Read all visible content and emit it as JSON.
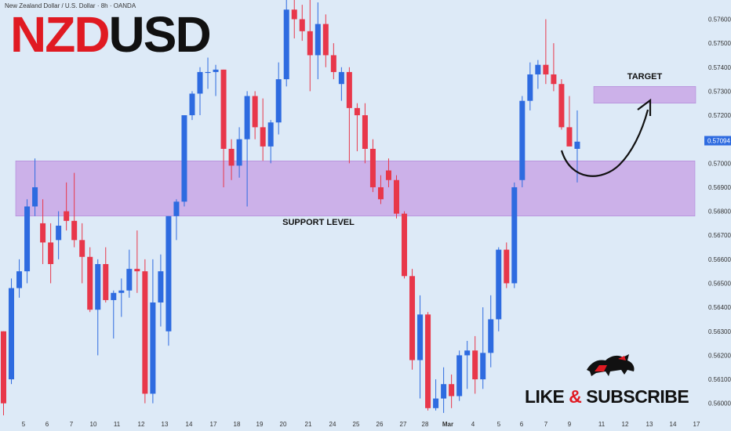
{
  "header": {
    "symbol_line": "New Zealand Dollar / U.S. Dollar · 8h · OANDA"
  },
  "logo": {
    "part1": "NZD",
    "part2": "USD"
  },
  "annotations": {
    "support": "SUPPORT LEVEL",
    "target": "TARGET"
  },
  "cta": {
    "like": "LIKE",
    "amp": "&",
    "subscribe": "SUBSCRIBE"
  },
  "colors": {
    "background": "#ddeaf7",
    "up": "#2e6be0",
    "down": "#e8374a",
    "zone": "#c9a7e6",
    "zone_border": "#a97bd3",
    "price_tag": "#2e6be0",
    "logo_red": "#e01a22"
  },
  "chart_data": {
    "type": "candlestick",
    "current_price": "0.57094",
    "ylim": [
      0.5595,
      0.5768
    ],
    "y_ticks": [
      "0.57600",
      "0.57500",
      "0.57400",
      "0.57300",
      "0.57200",
      "0.57100",
      "0.57000",
      "0.56900",
      "0.56800",
      "0.56700",
      "0.56600",
      "0.56500",
      "0.56400",
      "0.56300",
      "0.56200",
      "0.56100",
      "0.56000"
    ],
    "x_ticks": [
      "5",
      "6",
      "7",
      "10",
      "11",
      "12",
      "13",
      "14",
      "17",
      "18",
      "19",
      "20",
      "21",
      "24",
      "25",
      "26",
      "27",
      "28",
      "Mar",
      "4",
      "5",
      "6",
      "7",
      "9",
      "11",
      "12",
      "13",
      "14",
      "17"
    ],
    "zones": [
      {
        "label": "SUPPORT LEVEL",
        "y_low": 0.5678,
        "y_high": 0.5701
      },
      {
        "label": "TARGET",
        "y_low": 0.5725,
        "y_high": 0.5732
      }
    ],
    "candles": [
      [
        0.563,
        0.563,
        0.5595,
        0.56
      ],
      [
        0.561,
        0.5652,
        0.5608,
        0.5648
      ],
      [
        0.5648,
        0.566,
        0.5644,
        0.5655
      ],
      [
        0.5655,
        0.5685,
        0.565,
        0.5682
      ],
      [
        0.5682,
        0.5702,
        0.5678,
        0.569
      ],
      [
        0.5675,
        0.5685,
        0.5658,
        0.5667
      ],
      [
        0.5667,
        0.5675,
        0.565,
        0.5658
      ],
      [
        0.5668,
        0.568,
        0.566,
        0.5674
      ],
      [
        0.568,
        0.5692,
        0.5672,
        0.5676
      ],
      [
        0.5676,
        0.5696,
        0.5665,
        0.5668
      ],
      [
        0.5668,
        0.5675,
        0.565,
        0.5661
      ],
      [
        0.5661,
        0.5665,
        0.5638,
        0.5639
      ],
      [
        0.5639,
        0.566,
        0.562,
        0.5658
      ],
      [
        0.5658,
        0.5665,
        0.5642,
        0.5643
      ],
      [
        0.5643,
        0.5647,
        0.5627,
        0.5646
      ],
      [
        0.5646,
        0.5652,
        0.5636,
        0.5647
      ],
      [
        0.5647,
        0.5664,
        0.5644,
        0.5656
      ],
      [
        0.5656,
        0.5672,
        0.5646,
        0.5655
      ],
      [
        0.5655,
        0.566,
        0.56,
        0.5604
      ],
      [
        0.5604,
        0.566,
        0.56,
        0.5642
      ],
      [
        0.5642,
        0.5662,
        0.5632,
        0.5655
      ],
      [
        0.563,
        0.5678,
        0.5624,
        0.5678
      ],
      [
        0.5678,
        0.5685,
        0.5668,
        0.5684
      ],
      [
        0.5684,
        0.572,
        0.5682,
        0.572
      ],
      [
        0.572,
        0.573,
        0.5718,
        0.5729
      ],
      [
        0.5729,
        0.574,
        0.572,
        0.5738
      ],
      [
        0.5738,
        0.5744,
        0.5731,
        0.5738
      ],
      [
        0.5738,
        0.5741,
        0.5728,
        0.5739
      ],
      [
        0.5739,
        0.5739,
        0.569,
        0.5706
      ],
      [
        0.5706,
        0.571,
        0.5693,
        0.5699
      ],
      [
        0.5699,
        0.5715,
        0.5694,
        0.571
      ],
      [
        0.571,
        0.573,
        0.5682,
        0.5728
      ],
      [
        0.5728,
        0.573,
        0.571,
        0.5715
      ],
      [
        0.5715,
        0.5727,
        0.5701,
        0.5707
      ],
      [
        0.5707,
        0.5718,
        0.57,
        0.5717
      ],
      [
        0.5717,
        0.5742,
        0.5712,
        0.5735
      ],
      [
        0.5735,
        0.5768,
        0.5732,
        0.5764
      ],
      [
        0.5764,
        0.577,
        0.5752,
        0.576
      ],
      [
        0.576,
        0.5766,
        0.5751,
        0.5755
      ],
      [
        0.5755,
        0.5768,
        0.573,
        0.5745
      ],
      [
        0.5745,
        0.5767,
        0.5735,
        0.5758
      ],
      [
        0.5758,
        0.5762,
        0.574,
        0.5745
      ],
      [
        0.5745,
        0.575,
        0.5735,
        0.5738
      ],
      [
        0.5733,
        0.574,
        0.5726,
        0.5738
      ],
      [
        0.5738,
        0.574,
        0.57,
        0.5723
      ],
      [
        0.5723,
        0.5725,
        0.5705,
        0.572
      ],
      [
        0.572,
        0.5725,
        0.57,
        0.5706
      ],
      [
        0.5706,
        0.571,
        0.5688,
        0.569
      ],
      [
        0.569,
        0.5695,
        0.5683,
        0.5685
      ],
      [
        0.5697,
        0.5702,
        0.569,
        0.5693
      ],
      [
        0.5693,
        0.5695,
        0.5677,
        0.5679
      ],
      [
        0.5679,
        0.568,
        0.5652,
        0.5653
      ],
      [
        0.5653,
        0.5656,
        0.5614,
        0.5618
      ],
      [
        0.5618,
        0.5645,
        0.5602,
        0.5637
      ],
      [
        0.5637,
        0.5638,
        0.5597,
        0.5598
      ],
      [
        0.5598,
        0.561,
        0.5597,
        0.5602
      ],
      [
        0.5602,
        0.5615,
        0.5596,
        0.5608
      ],
      [
        0.5608,
        0.5612,
        0.5598,
        0.5603
      ],
      [
        0.5603,
        0.5622,
        0.5601,
        0.562
      ],
      [
        0.562,
        0.5626,
        0.5606,
        0.5622
      ],
      [
        0.5622,
        0.5628,
        0.5604,
        0.561
      ],
      [
        0.561,
        0.564,
        0.5606,
        0.5621
      ],
      [
        0.5621,
        0.5645,
        0.5615,
        0.5635
      ],
      [
        0.5635,
        0.5665,
        0.563,
        0.5664
      ],
      [
        0.5664,
        0.5667,
        0.5648,
        0.565
      ],
      [
        0.565,
        0.5692,
        0.5648,
        0.569
      ],
      [
        0.5693,
        0.5728,
        0.569,
        0.5726
      ],
      [
        0.5726,
        0.5742,
        0.5722,
        0.5737
      ],
      [
        0.5737,
        0.5743,
        0.5731,
        0.5741
      ],
      [
        0.5741,
        0.576,
        0.5733,
        0.5737
      ],
      [
        0.5737,
        0.575,
        0.573,
        0.5733
      ],
      [
        0.5733,
        0.5735,
        0.5714,
        0.5715
      ],
      [
        0.5715,
        0.5728,
        0.5708,
        0.5707
      ],
      [
        0.5706,
        0.5722,
        0.5692,
        0.5709
      ]
    ]
  }
}
